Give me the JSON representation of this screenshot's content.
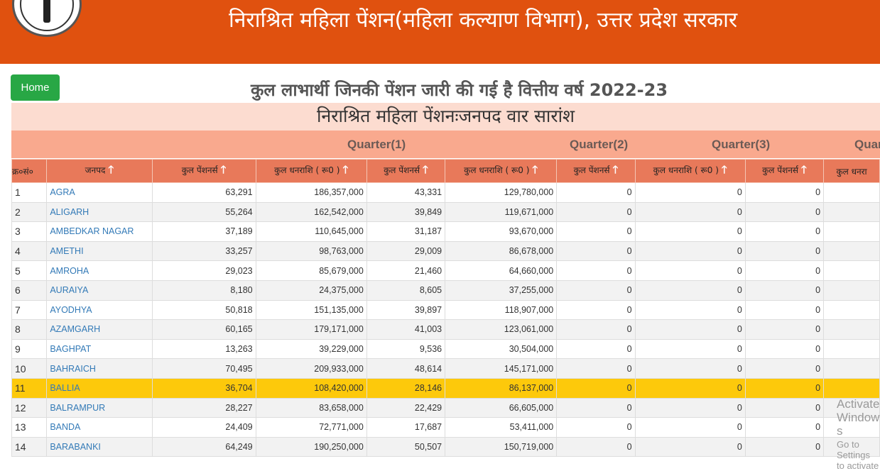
{
  "header": {
    "title": "निराश्रित महिला पेंशन(महिला कल्याण विभाग), उत्तर प्रदेश सरकार",
    "bg_color": "#e0510f"
  },
  "nav": {
    "home_label": "Home"
  },
  "page": {
    "title": "कुल लाभार्थी जिनकी पेंशन जारी की गई है वित्तीय वर्ष 2022-23",
    "caption": "निराश्रित महिला पेंशनःजनपद वार सारांश"
  },
  "quarters": [
    "Quarter(1)",
    "Quarter(2)",
    "Quarter(3)",
    "Quar"
  ],
  "columns": [
    "क्र०सं०",
    "जनपद",
    "कुल पेंशनर्स",
    "कुल धनराशि ( रू0 )",
    "कुल पेंशनर्स",
    "कुल धनराशि ( रू0 )",
    "कुल पेंशनर्स",
    "कुल धनराशि ( रू0 )",
    "कुल पेंशनर्स",
    "कुल धनरा"
  ],
  "rows": [
    [
      "1",
      "AGRA",
      "63,291",
      "186,357,000",
      "43,331",
      "129,780,000",
      "0",
      "0",
      "0",
      ""
    ],
    [
      "2",
      "ALIGARH",
      "55,264",
      "162,542,000",
      "39,849",
      "119,671,000",
      "0",
      "0",
      "0",
      ""
    ],
    [
      "3",
      "AMBEDKAR NAGAR",
      "37,189",
      "110,645,000",
      "31,187",
      "93,670,000",
      "0",
      "0",
      "0",
      ""
    ],
    [
      "4",
      "AMETHI",
      "33,257",
      "98,763,000",
      "29,009",
      "86,678,000",
      "0",
      "0",
      "0",
      ""
    ],
    [
      "5",
      "AMROHA",
      "29,023",
      "85,679,000",
      "21,460",
      "64,660,000",
      "0",
      "0",
      "0",
      ""
    ],
    [
      "6",
      "AURAIYA",
      "8,180",
      "24,375,000",
      "8,605",
      "37,255,000",
      "0",
      "0",
      "0",
      ""
    ],
    [
      "7",
      "AYODHYA",
      "50,818",
      "151,135,000",
      "39,897",
      "118,907,000",
      "0",
      "0",
      "0",
      ""
    ],
    [
      "8",
      "AZAMGARH",
      "60,165",
      "179,171,000",
      "41,003",
      "123,061,000",
      "0",
      "0",
      "0",
      ""
    ],
    [
      "9",
      "BAGHPAT",
      "13,263",
      "39,229,000",
      "9,536",
      "30,504,000",
      "0",
      "0",
      "0",
      ""
    ],
    [
      "10",
      "BAHRAICH",
      "70,495",
      "209,933,000",
      "48,614",
      "145,171,000",
      "0",
      "0",
      "0",
      ""
    ],
    [
      "11",
      "BALLIA",
      "36,704",
      "108,420,000",
      "28,146",
      "86,137,000",
      "0",
      "0",
      "0",
      ""
    ],
    [
      "12",
      "BALRAMPUR",
      "28,227",
      "83,658,000",
      "22,429",
      "66,605,000",
      "0",
      "0",
      "0",
      ""
    ],
    [
      "13",
      "BANDA",
      "24,409",
      "72,771,000",
      "17,687",
      "53,411,000",
      "0",
      "0",
      "0",
      ""
    ],
    [
      "14",
      "BARABANKI",
      "64,249",
      "190,250,000",
      "50,507",
      "150,719,000",
      "0",
      "0",
      "0",
      ""
    ]
  ],
  "highlighted_row": "11",
  "highlight_color": "#fdc90b",
  "watermark": {
    "line1": "Activate Windows",
    "line2": "Go to Settings to activate"
  }
}
